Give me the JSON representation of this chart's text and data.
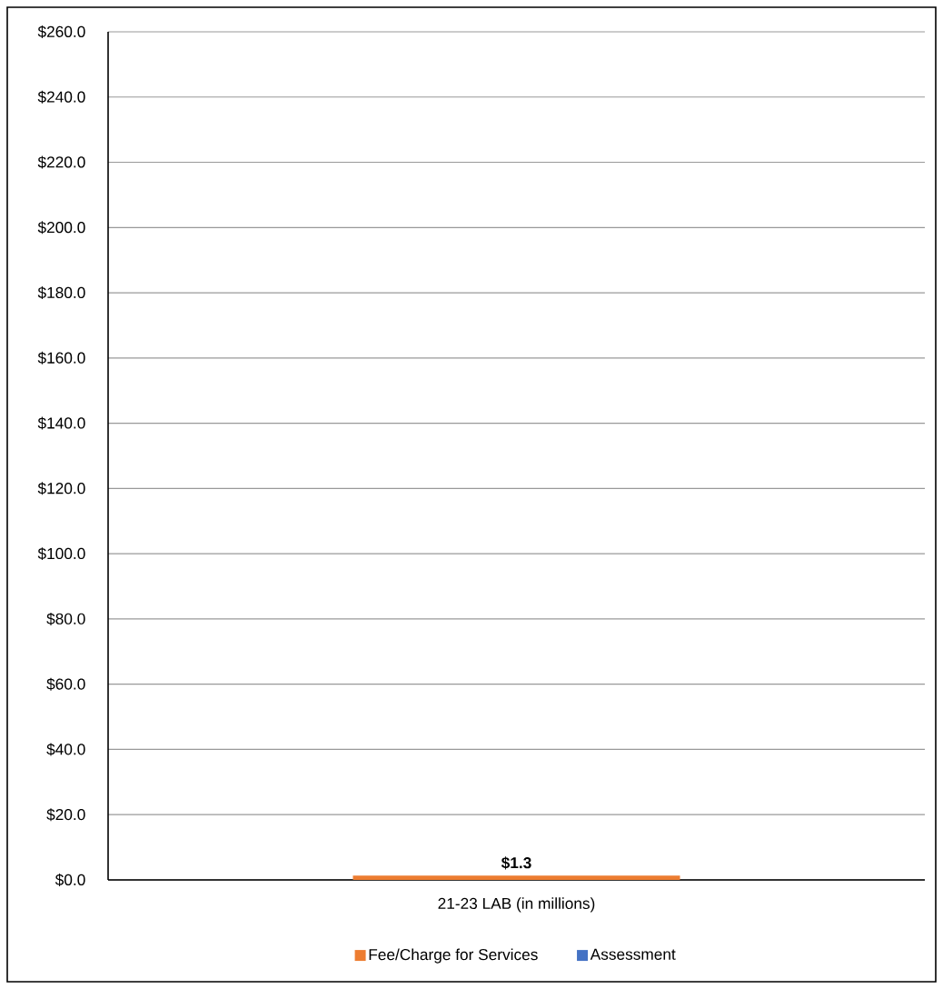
{
  "chart_data": {
    "type": "bar",
    "categories": [
      "21-23 LAB (in millions)"
    ],
    "series": [
      {
        "name": "Fee/Charge for Services",
        "color": "#ed7d31",
        "values": [
          1.3
        ],
        "value_labels": [
          "$1.3"
        ]
      },
      {
        "name": "Assessment",
        "color": "#4472c4",
        "values": [
          null
        ]
      }
    ],
    "ylim": [
      0,
      260
    ],
    "yticks": [
      {
        "value": 0,
        "label": "$0.0"
      },
      {
        "value": 20,
        "label": "$20.0"
      },
      {
        "value": 40,
        "label": "$40.0"
      },
      {
        "value": 60,
        "label": "$60.0"
      },
      {
        "value": 80,
        "label": "$80.0"
      },
      {
        "value": 100,
        "label": "$100.0"
      },
      {
        "value": 120,
        "label": "$120.0"
      },
      {
        "value": 140,
        "label": "$140.0"
      },
      {
        "value": 160,
        "label": "$160.0"
      },
      {
        "value": 180,
        "label": "$180.0"
      },
      {
        "value": 200,
        "label": "$200.0"
      },
      {
        "value": 220,
        "label": "$220.0"
      },
      {
        "value": 240,
        "label": "$240.0"
      },
      {
        "value": 260,
        "label": "$260.0"
      }
    ],
    "grid": "y",
    "legend": "bottom"
  }
}
